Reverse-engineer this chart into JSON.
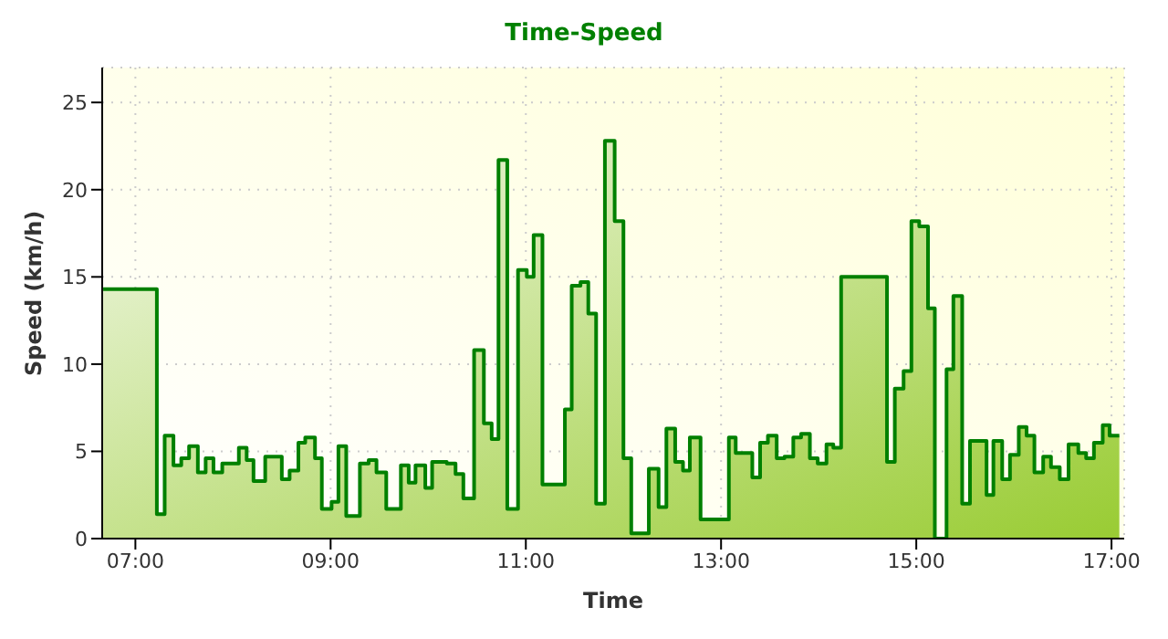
{
  "chart_data": {
    "type": "step",
    "title": "Time-Speed",
    "xlabel": "Time",
    "ylabel": "Speed (km/h)",
    "color": "#008000",
    "grid": true,
    "marker": "none",
    "line_style": "solid",
    "x": [
      6.67,
      7.22,
      7.3,
      7.39,
      7.47,
      7.55,
      7.64,
      7.72,
      7.8,
      7.89,
      8.06,
      8.14,
      8.21,
      8.33,
      8.5,
      8.58,
      8.67,
      8.74,
      8.84,
      8.91,
      9.01,
      9.08,
      9.16,
      9.3,
      9.39,
      9.47,
      9.57,
      9.72,
      9.8,
      9.87,
      9.97,
      10.04,
      10.19,
      10.28,
      10.36,
      10.47,
      10.57,
      10.65,
      10.72,
      10.81,
      10.92,
      11.01,
      11.08,
      11.17,
      11.4,
      11.47,
      11.56,
      11.64,
      11.72,
      11.81,
      11.91,
      12.0,
      12.08,
      12.26,
      12.36,
      12.44,
      12.53,
      12.61,
      12.68,
      12.79,
      13.08,
      13.15,
      13.32,
      13.4,
      13.48,
      13.57,
      13.65,
      13.74,
      13.82,
      13.91,
      13.99,
      14.08,
      14.15,
      14.23,
      14.7,
      14.78,
      14.87,
      14.95,
      15.03,
      15.12,
      15.19,
      15.31,
      15.38,
      15.47,
      15.55,
      15.72,
      15.79,
      15.88,
      15.96,
      16.05,
      16.13,
      16.21,
      16.3,
      16.38,
      16.47,
      16.56,
      16.66,
      16.74,
      16.82,
      16.91,
      16.98,
      17.08
    ],
    "values": [
      14.3,
      1.4,
      5.9,
      4.2,
      4.6,
      5.3,
      3.8,
      4.6,
      3.8,
      4.3,
      5.2,
      4.5,
      3.3,
      4.7,
      3.4,
      3.9,
      5.5,
      5.8,
      4.6,
      1.7,
      2.1,
      5.3,
      1.3,
      4.3,
      4.5,
      3.8,
      1.7,
      4.2,
      3.2,
      4.2,
      2.9,
      4.4,
      4.3,
      3.7,
      2.3,
      10.8,
      6.6,
      5.7,
      21.7,
      1.7,
      15.4,
      15.0,
      17.4,
      3.1,
      7.4,
      14.5,
      14.7,
      12.9,
      2.0,
      22.8,
      18.2,
      4.6,
      0.3,
      4.0,
      1.8,
      6.3,
      4.4,
      3.9,
      5.8,
      1.1,
      5.8,
      4.9,
      3.5,
      5.5,
      5.9,
      4.6,
      4.7,
      5.8,
      6.0,
      4.6,
      4.3,
      5.4,
      5.2,
      15.0,
      4.4,
      8.6,
      9.6,
      18.2,
      17.9,
      13.2,
      0,
      9.7,
      13.9,
      2.0,
      5.6,
      2.5,
      5.6,
      3.4,
      4.8,
      6.4,
      5.9,
      3.8,
      4.7,
      4.1,
      3.4,
      5.4,
      4.9,
      4.6,
      5.5,
      6.5,
      5.9,
      5.9
    ],
    "xlim": [
      6.66,
      17.13
    ],
    "xticks": [
      {
        "value": 7,
        "label": "07:00"
      },
      {
        "value": 9,
        "label": "09:00"
      },
      {
        "value": 11,
        "label": "11:00"
      },
      {
        "value": 13,
        "label": "13:00"
      },
      {
        "value": 15,
        "label": "15:00"
      },
      {
        "value": 17,
        "label": "17:00"
      }
    ],
    "ylim": [
      0,
      27
    ],
    "yticks": [
      0,
      5,
      10,
      15,
      20,
      25
    ]
  }
}
